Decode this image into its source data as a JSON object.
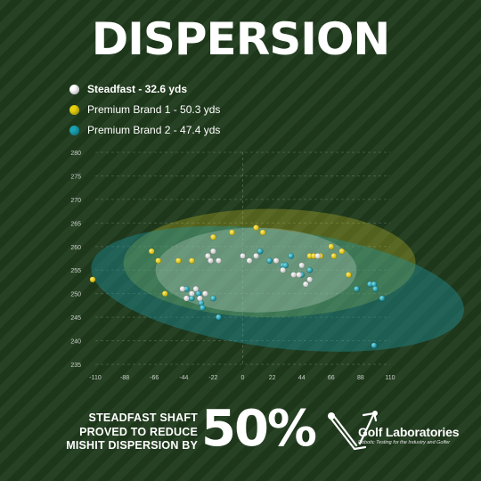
{
  "title": "DISPERSION",
  "claim": {
    "lines": [
      "STEADFAST SHAFT",
      "PROVED TO REDUCE",
      "MISHIT DISPERSION BY"
    ],
    "value": "50%"
  },
  "brand": {
    "name": "Golf Laboratories",
    "tagline": "Robotic Testing for the Industry and Golfer"
  },
  "colors": {
    "steadfast": "#ffffff",
    "brand1": "#e8d20f",
    "brand2": "#1aa3b5",
    "background": "#1f3a1c"
  },
  "icons": [
    "golf-robot-logo-icon"
  ],
  "chart_data": {
    "type": "scatter",
    "x_ticks": [
      -110,
      -88,
      -66,
      -44,
      -22,
      0,
      22,
      44,
      66,
      88,
      110
    ],
    "y_ticks": [
      235,
      240,
      245,
      250,
      255,
      260,
      265,
      270,
      275,
      280
    ],
    "xlim": [
      -110,
      110
    ],
    "ylim": [
      235,
      280
    ],
    "grid": true,
    "legend_position": "top-left",
    "series": [
      {
        "name": "Premium Brand 2 - 47.4 yds",
        "color": "#1aa3b5",
        "ellipse": {
          "cx": 26,
          "cy": 251,
          "rx": 140,
          "ry": 12.5,
          "angle_deg": 7
        },
        "points": [
          [
            -42,
            251
          ],
          [
            -38,
            249
          ],
          [
            -33,
            250
          ],
          [
            -31,
            248
          ],
          [
            -30,
            247
          ],
          [
            -22,
            249
          ],
          [
            -18,
            245
          ],
          [
            0,
            258
          ],
          [
            13,
            259
          ],
          [
            20,
            257
          ],
          [
            30,
            256
          ],
          [
            32,
            256
          ],
          [
            36,
            258
          ],
          [
            44,
            254
          ],
          [
            50,
            255
          ],
          [
            85,
            251
          ],
          [
            95,
            252
          ],
          [
            98,
            252
          ],
          [
            99,
            251
          ],
          [
            104,
            249
          ],
          [
            98,
            239
          ]
        ]
      },
      {
        "name": "Premium Brand 1 - 50.3 yds",
        "color": "#e8d20f",
        "ellipse": {
          "cx": 20,
          "cy": 256.5,
          "rx": 109,
          "ry": 11.5,
          "angle_deg": 0
        },
        "points": [
          [
            -112,
            253
          ],
          [
            -68,
            259
          ],
          [
            -63,
            257
          ],
          [
            -58,
            250
          ],
          [
            -48,
            257
          ],
          [
            -38,
            257
          ],
          [
            -22,
            262
          ],
          [
            -8,
            263
          ],
          [
            10,
            264
          ],
          [
            15,
            263
          ],
          [
            50,
            258
          ],
          [
            53,
            258
          ],
          [
            58,
            258
          ],
          [
            66,
            260
          ],
          [
            68,
            258
          ],
          [
            74,
            259
          ],
          [
            79,
            254
          ]
        ]
      },
      {
        "name": "Steadfast - 32.6 yds",
        "color": "#ffffff",
        "ellipse": {
          "cx": 10,
          "cy": 255,
          "rx": 75,
          "ry": 9,
          "angle_deg": 0
        },
        "points": [
          [
            -45,
            251
          ],
          [
            -42,
            249
          ],
          [
            -38,
            250
          ],
          [
            -35,
            251
          ],
          [
            -32,
            249
          ],
          [
            -28,
            250
          ],
          [
            -26,
            258
          ],
          [
            -24,
            257
          ],
          [
            -22,
            259
          ],
          [
            -18,
            257
          ],
          [
            0,
            258
          ],
          [
            5,
            257
          ],
          [
            10,
            258
          ],
          [
            25,
            257
          ],
          [
            30,
            255
          ],
          [
            38,
            254
          ],
          [
            42,
            254
          ],
          [
            44,
            256
          ],
          [
            47,
            252
          ],
          [
            50,
            253
          ],
          [
            56,
            258
          ]
        ]
      }
    ],
    "draw_order": [
      1,
      0,
      2
    ]
  }
}
